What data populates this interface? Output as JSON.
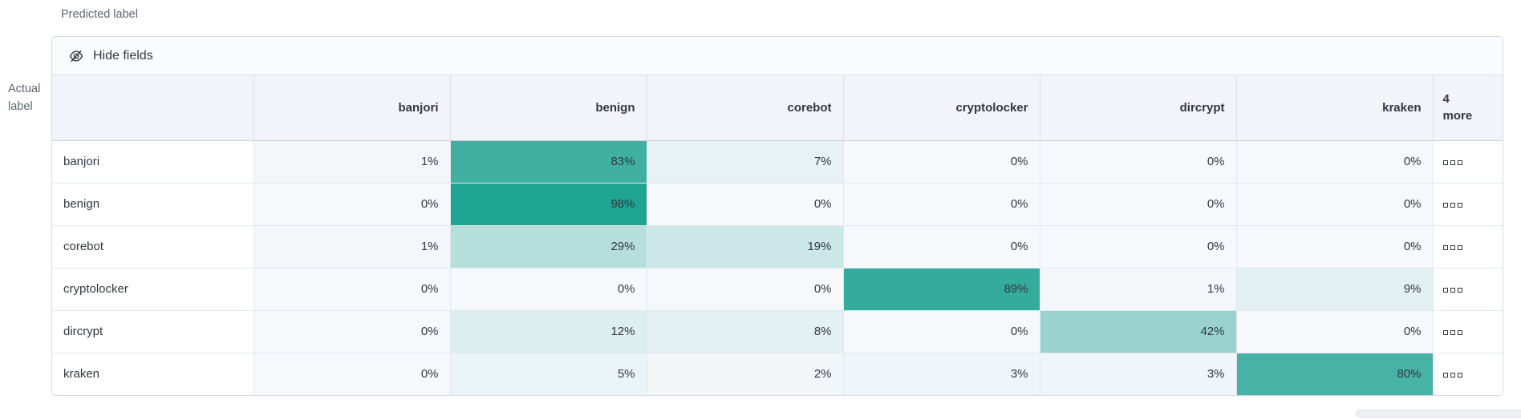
{
  "labels": {
    "predicted": "Predicted label",
    "actual": "Actual label"
  },
  "toolbar": {
    "hide_fields": "Hide fields"
  },
  "grid": {
    "columns": [
      "banjori",
      "benign",
      "corebot",
      "cryptolocker",
      "dircrypt",
      "kraken"
    ],
    "more_column_label": "4 more",
    "rows": [
      {
        "label": "banjori",
        "cells": [
          "1%",
          "83%",
          "7%",
          "0%",
          "0%",
          "0%"
        ]
      },
      {
        "label": "benign",
        "cells": [
          "0%",
          "98%",
          "0%",
          "0%",
          "0%",
          "0%"
        ]
      },
      {
        "label": "corebot",
        "cells": [
          "1%",
          "29%",
          "19%",
          "0%",
          "0%",
          "0%"
        ]
      },
      {
        "label": "cryptolocker",
        "cells": [
          "0%",
          "0%",
          "0%",
          "89%",
          "1%",
          "9%"
        ]
      },
      {
        "label": "dircrypt",
        "cells": [
          "0%",
          "12%",
          "8%",
          "0%",
          "42%",
          "0%"
        ]
      },
      {
        "label": "kraken",
        "cells": [
          "0%",
          "5%",
          "2%",
          "3%",
          "3%",
          "80%"
        ]
      }
    ]
  },
  "chart_data": {
    "type": "heatmap",
    "x_axis_label": "Predicted label",
    "y_axis_label": "Actual label",
    "x_categories": [
      "banjori",
      "benign",
      "corebot",
      "cryptolocker",
      "dircrypt",
      "kraken"
    ],
    "y_categories": [
      "banjori",
      "benign",
      "corebot",
      "cryptolocker",
      "dircrypt",
      "kraken"
    ],
    "values_percent": [
      [
        1,
        83,
        7,
        0,
        0,
        0
      ],
      [
        0,
        98,
        0,
        0,
        0,
        0
      ],
      [
        1,
        29,
        19,
        0,
        0,
        0
      ],
      [
        0,
        0,
        0,
        89,
        1,
        9
      ],
      [
        0,
        12,
        8,
        0,
        42,
        0
      ],
      [
        0,
        5,
        2,
        3,
        3,
        80
      ]
    ],
    "hidden_columns_note": "4 more"
  },
  "colors": {
    "heatmap_base": "#1BA191",
    "cell_zero_bg": "#F6F8FB",
    "header_bg": "#F2F4F9",
    "toolbar_bg": "#FAFBFD",
    "border": "#D3DAE6",
    "text": "#343741",
    "muted_text": "#5D6470"
  }
}
